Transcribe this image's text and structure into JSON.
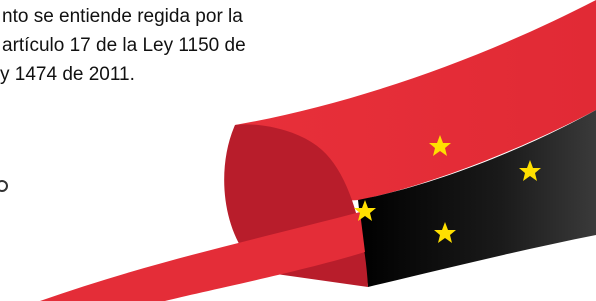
{
  "document": {
    "lines": [
      "nto se entiende regida por la",
      "artículo 17 de la Ley 1150 de",
      "y 1474 de 2011."
    ]
  }
}
